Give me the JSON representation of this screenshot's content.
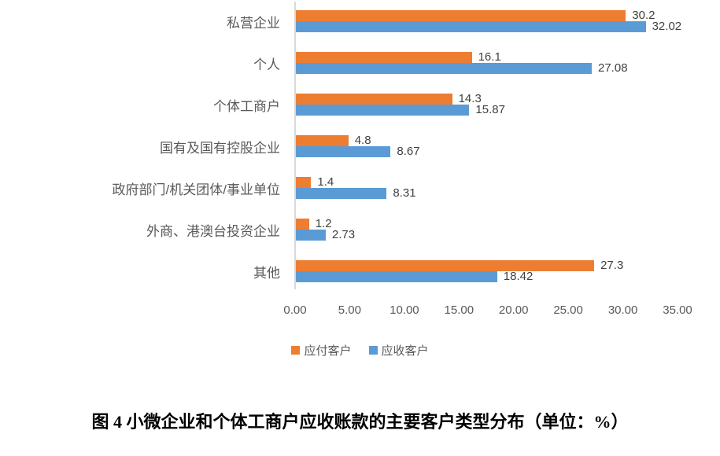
{
  "figure": {
    "caption": "图 4 小微企业和个体工商户应收账款的主要客户类型分布（单位：%）"
  },
  "chart_data": {
    "type": "bar",
    "orientation": "horizontal",
    "title": "",
    "xlabel": "",
    "ylabel": "",
    "categories": [
      "私营企业",
      "个人",
      "个体工商户",
      "国有及国有控股企业",
      "政府部门/机关团体/事业单位",
      "外商、港澳台投资企业",
      "其他"
    ],
    "series": [
      {
        "name": "应付客户",
        "color": "#ED7D31",
        "values": [
          30.2,
          16.1,
          14.3,
          4.8,
          1.4,
          1.2,
          27.3
        ]
      },
      {
        "name": "应收客户",
        "color": "#5B9BD5",
        "values": [
          32.02,
          27.08,
          15.87,
          8.67,
          8.31,
          2.73,
          18.42
        ]
      }
    ],
    "xlim": [
      0,
      35
    ],
    "x_ticks": [
      "0.00",
      "5.00",
      "10.00",
      "15.00",
      "20.00",
      "25.00",
      "30.00",
      "35.00"
    ],
    "data_labels": true,
    "grid": false,
    "legend_position": "bottom",
    "colors": {
      "axis_line": "#d9d9d9",
      "category_label": "#595959",
      "value_label": "#404040",
      "tick_label": "#595959",
      "legend_label": "#595959"
    }
  }
}
